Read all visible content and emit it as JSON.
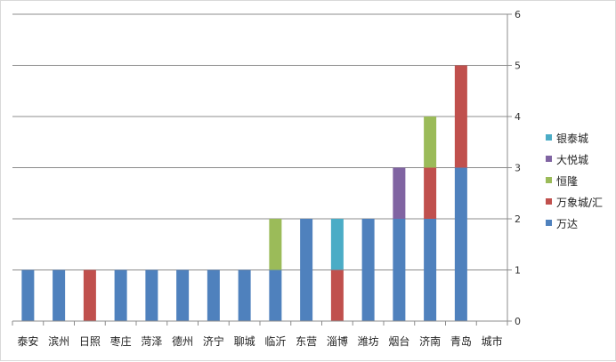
{
  "chart_data": {
    "type": "bar",
    "stacked": true,
    "categories": [
      "泰安",
      "滨州",
      "日照",
      "枣庄",
      "菏泽",
      "德州",
      "济宁",
      "聊城",
      "临沂",
      "东营",
      "淄博",
      "潍坊",
      "烟台",
      "济南",
      "青岛",
      "城市"
    ],
    "series": [
      {
        "name": "万达",
        "color": "#4f81bd",
        "values": [
          1,
          1,
          0,
          1,
          1,
          1,
          1,
          1,
          1,
          2,
          0,
          2,
          2,
          2,
          3,
          0
        ]
      },
      {
        "name": "万象城/汇",
        "color": "#c0504d",
        "values": [
          0,
          0,
          1,
          0,
          0,
          0,
          0,
          0,
          0,
          0,
          1,
          0,
          0,
          1,
          2,
          0
        ]
      },
      {
        "name": "恒隆",
        "color": "#9bbb59",
        "values": [
          0,
          0,
          0,
          0,
          0,
          0,
          0,
          0,
          1,
          0,
          0,
          0,
          0,
          1,
          0,
          0
        ]
      },
      {
        "name": "大悦城",
        "color": "#8064a2",
        "values": [
          0,
          0,
          0,
          0,
          0,
          0,
          0,
          0,
          0,
          0,
          0,
          0,
          1,
          0,
          0,
          0
        ]
      },
      {
        "name": "银泰城",
        "color": "#4bacc6",
        "values": [
          0,
          0,
          0,
          0,
          0,
          0,
          0,
          0,
          0,
          0,
          1,
          0,
          0,
          0,
          0,
          0
        ]
      }
    ],
    "ylim": [
      0,
      6
    ],
    "yticks": [
      0,
      1,
      2,
      3,
      4,
      5,
      6
    ],
    "y_axis_side": "right",
    "grid": true,
    "legend_position": "right",
    "title": "",
    "xlabel": "",
    "ylabel": ""
  }
}
